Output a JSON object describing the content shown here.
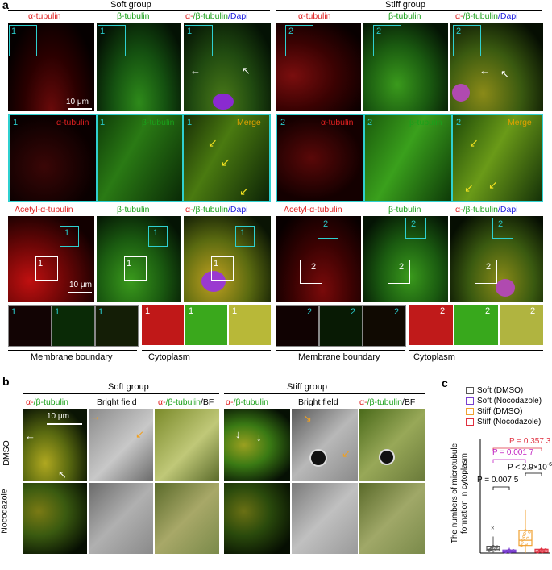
{
  "panel_a": {
    "letter": "a",
    "group_left": "Soft group",
    "group_right": "Stiff group",
    "row1_labels": {
      "alpha": "α-tubulin",
      "beta": "β-tubulin",
      "merge_a": "α-",
      "merge_b": "/β-tubulin",
      "merge_c": "/Dapi"
    },
    "row2_labels": {
      "alpha": "α-tubulin",
      "beta": "β-tubulin",
      "merge": "Merge"
    },
    "row3_labels": {
      "acetyl": "Acetyl-α-tubulin",
      "beta": "β-tubulin",
      "merge_a": "α-",
      "merge_b": "/β-tubulin",
      "merge_c": "/Dapi"
    },
    "scale_bar": "10 μm",
    "roi_1": "1",
    "roi_2": "2",
    "bottom_labels": {
      "membrane": "Membrane boundary",
      "cytoplasm": "Cytoplasm"
    }
  },
  "panel_b": {
    "letter": "b",
    "group_left": "Soft group",
    "group_right": "Stiff group",
    "col_labels": {
      "merge_a": "α-",
      "merge_b": "/β-tubulin",
      "bf": "Bright field",
      "bfmerge_a": "α-",
      "bfmerge_b": "/β-tubulin",
      "bfmerge_c": "/BF"
    },
    "row_dmso": "DMSO",
    "row_noc": "Nocodazole",
    "scale_bar": "10 μm"
  },
  "panel_c": {
    "letter": "c",
    "legend": [
      "Soft (DMSO)",
      "Soft (Nocodazole)",
      "Stiff (DMSO)",
      "Stiff (Nocodazole)"
    ],
    "ylabel_1": "The numbers of microtubule",
    "ylabel_2": "formation in cytoplasm",
    "p_values": [
      "P = 0.357 3",
      "P = 0.001 7",
      "P < 2.9×10",
      "P = 0.007 5"
    ],
    "p_exp": "-6",
    "colors": {
      "soft_dmso": "#555555",
      "soft_noc": "#7a3fd0",
      "stiff_dmso": "#f0a030",
      "stiff_noc": "#e03040"
    }
  },
  "chart_data": {
    "type": "box",
    "categories": [
      "Soft (DMSO)",
      "Soft (Nocodazole)",
      "Stiff (DMSO)",
      "Stiff (Nocodazole)"
    ],
    "series": [
      {
        "name": "Soft (DMSO)",
        "q1": 3,
        "median": 5,
        "q3": 9,
        "min": 0,
        "max": 22,
        "outliers": [
          34
        ]
      },
      {
        "name": "Soft (Nocodazole)",
        "q1": 1,
        "median": 2,
        "q3": 4,
        "min": 0,
        "max": 7,
        "outliers": []
      },
      {
        "name": "Stiff (DMSO)",
        "q1": 10,
        "median": 17,
        "q3": 30,
        "min": 0,
        "max": 58,
        "outliers": []
      },
      {
        "name": "Stiff (Nocodazole)",
        "q1": 1,
        "median": 3,
        "q3": 5,
        "min": 0,
        "max": 8,
        "outliers": []
      }
    ],
    "comparisons": [
      {
        "a": "Soft (DMSO)",
        "b": "Stiff (Nocodazole)",
        "p": "P = 0.357 3"
      },
      {
        "a": "Soft (DMSO)",
        "b": "Stiff (DMSO)",
        "p": "P = 0.001 7"
      },
      {
        "a": "Stiff (DMSO)",
        "b": "Stiff (Nocodazole)",
        "p": "P < 2.9×10-6"
      },
      {
        "a": "Soft (DMSO)",
        "b": "Soft (Nocodazole)",
        "p": "P = 0.007 5"
      }
    ]
  }
}
